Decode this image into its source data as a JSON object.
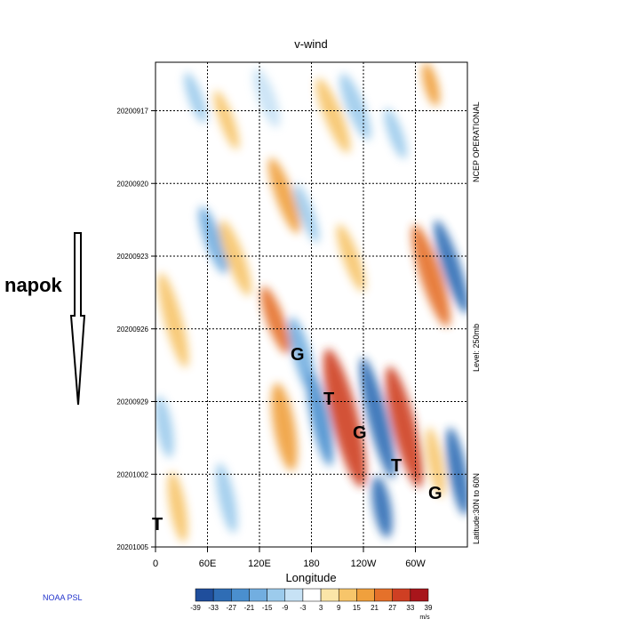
{
  "chart_data": {
    "type": "hovmoller",
    "title": "v-wind",
    "x_label": "Longitude",
    "xlim": [
      0,
      360
    ],
    "xticks": [
      0,
      {
        "value": 60,
        "label": "60E"
      },
      {
        "value": 120,
        "label": "120E"
      },
      180,
      {
        "value": 240,
        "label": "120W"
      },
      {
        "value": 300,
        "label": "60W"
      }
    ],
    "ylim": [
      "20200915",
      "20201005"
    ],
    "yticks": [
      "20200917",
      "20200920",
      "20200923",
      "20200926",
      "20200929",
      "20201002",
      "20201005"
    ],
    "grid": true,
    "side_labels": [
      "NCEP OPERATIONAL",
      "Level:  250mb",
      "Latitude:30N to 60N"
    ],
    "annotations": [
      "G",
      "T",
      "G",
      "T",
      "G",
      "T"
    ],
    "arrow_label": "napok",
    "credit": "NOAA PSL",
    "colorbar": {
      "ticks": [
        -39,
        -33,
        -27,
        -21,
        -15,
        -9,
        -3,
        3,
        9,
        15,
        21,
        27,
        33,
        39
      ],
      "unit": "m/s",
      "colors": [
        "#1f4e9c",
        "#2f6db5",
        "#4a8fcf",
        "#72aee0",
        "#9ccbec",
        "#c7e2f5",
        "#ffffff",
        "#fbe5a8",
        "#f7c56a",
        "#f0a03d",
        "#e5712a",
        "#cf3f23",
        "#a8151b"
      ]
    }
  }
}
